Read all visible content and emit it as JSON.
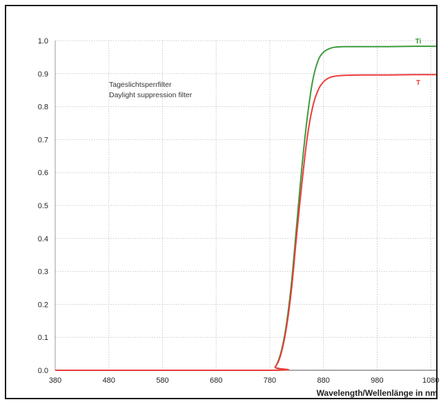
{
  "chart_data": {
    "type": "line",
    "title": "",
    "xlabel": "Wavelength/Wellenlänge in nm",
    "ylabel": "",
    "xlim": [
      380,
      1090
    ],
    "ylim": [
      0.0,
      1.0
    ],
    "x_ticks": [
      380,
      480,
      580,
      680,
      780,
      880,
      980,
      1080
    ],
    "y_ticks": [
      0.0,
      0.1,
      0.2,
      0.3,
      0.4,
      0.5,
      0.6,
      0.7,
      0.8,
      0.9,
      1.0
    ],
    "x_tick_labels": [
      "380",
      "480",
      "580",
      "680",
      "780",
      "880",
      "980",
      "1080"
    ],
    "y_tick_labels": [
      "0.0",
      "0.1",
      "0.2",
      "0.3",
      "0.4",
      "0.5",
      "0.6",
      "0.7",
      "0.8",
      "0.9",
      "1.0"
    ],
    "grid": true,
    "annotations": [
      "Tageslichtsperrfilter",
      "Daylight suppression filter"
    ],
    "series": [
      {
        "name": "Ti",
        "color": "#3a9a3a",
        "x": [
          380,
          780,
          790,
          800,
          810,
          820,
          830,
          840,
          850,
          860,
          870,
          880,
          890,
          900,
          920,
          960,
          1000,
          1050,
          1090
        ],
        "y": [
          0.0,
          0.0,
          0.01,
          0.05,
          0.13,
          0.26,
          0.44,
          0.62,
          0.77,
          0.88,
          0.94,
          0.965,
          0.975,
          0.98,
          0.982,
          0.982,
          0.982,
          0.983,
          0.983
        ]
      },
      {
        "name": "T",
        "color": "#ee3b3b",
        "x": [
          380,
          780,
          790,
          800,
          810,
          820,
          830,
          840,
          850,
          860,
          870,
          880,
          890,
          900,
          920,
          960,
          1000,
          1050,
          1090
        ],
        "y": [
          0.0,
          0.0,
          0.01,
          0.045,
          0.12,
          0.24,
          0.41,
          0.57,
          0.71,
          0.8,
          0.85,
          0.875,
          0.887,
          0.892,
          0.895,
          0.896,
          0.896,
          0.897,
          0.897
        ]
      }
    ]
  }
}
